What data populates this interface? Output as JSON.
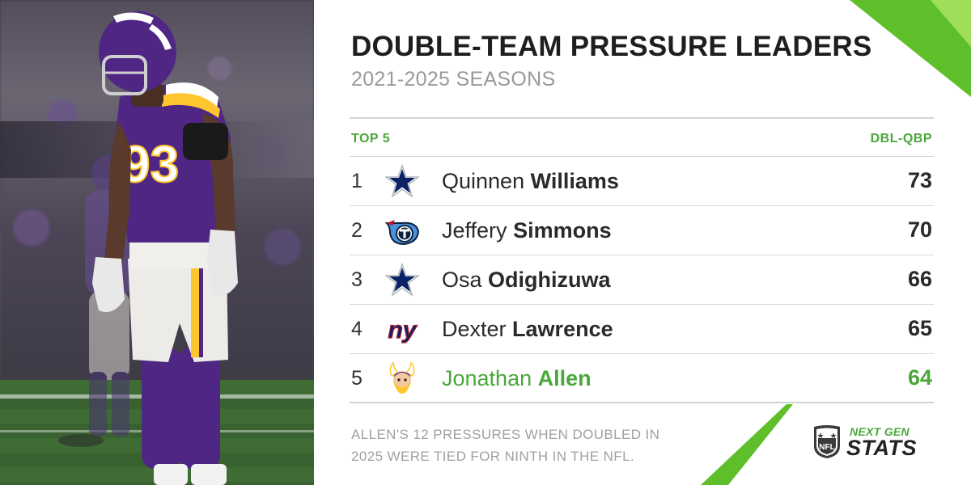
{
  "header": {
    "title": "DOUBLE-TEAM PRESSURE LEADERS",
    "subtitle": "2021-2025 SEASONS"
  },
  "table": {
    "left_header": "TOP 5",
    "right_header": "DBL-QBP",
    "rows": [
      {
        "rank": "1",
        "first": "Quinnen",
        "last": "Williams",
        "value": "73",
        "team_icon": "cowboys-star-icon"
      },
      {
        "rank": "2",
        "first": "Jeffery",
        "last": "Simmons",
        "value": "70",
        "team_icon": "titans-logo-icon"
      },
      {
        "rank": "3",
        "first": "Osa",
        "last": "Odighizuwa",
        "value": "66",
        "team_icon": "cowboys-star-icon"
      },
      {
        "rank": "4",
        "first": "Dexter",
        "last": "Lawrence",
        "value": "65",
        "team_icon": "giants-ny-icon"
      },
      {
        "rank": "5",
        "first": "Jonathan",
        "last": "Allen",
        "value": "64",
        "team_icon": "vikings-head-icon"
      }
    ]
  },
  "footnote": "ALLEN'S 12 PRESSURES WHEN DOUBLED IN 2025 WERE TIED FOR NINTH IN THE NFL.",
  "branding": {
    "line1": "NEXT GEN",
    "line2": "STATS",
    "shield_text": "NFL"
  },
  "photo": {
    "jersey_number": "93"
  },
  "colors": {
    "accent": "#4aa83a",
    "text": "#222222",
    "muted": "#9a9a9a",
    "vikings_purple": "#4f2683"
  }
}
